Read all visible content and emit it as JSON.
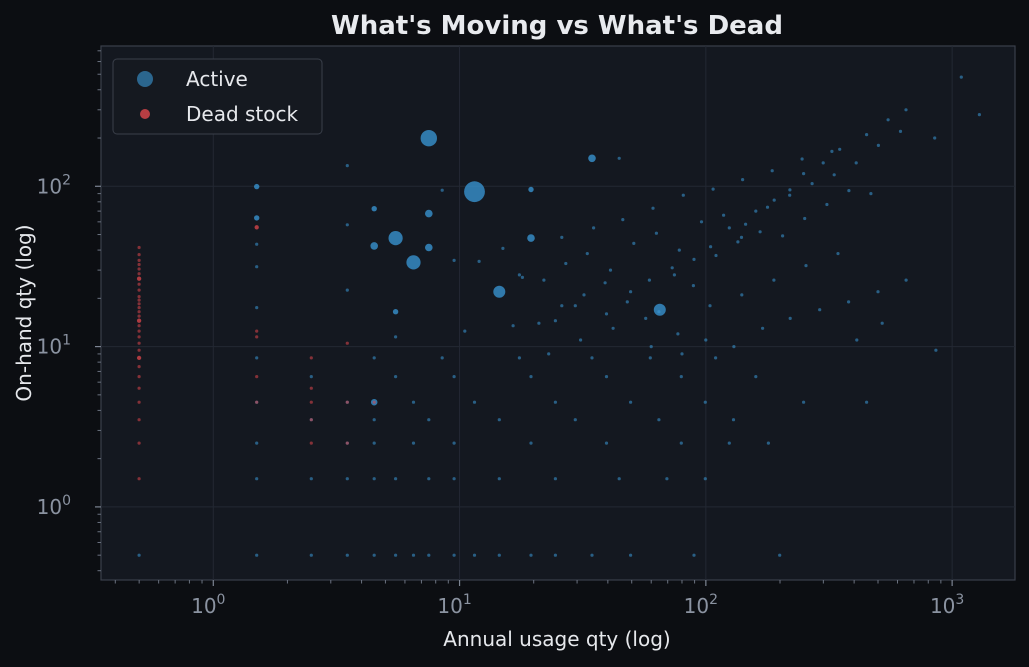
{
  "chart_data": {
    "type": "scatter",
    "title": "What's Moving vs What's Dead",
    "xlabel": "Annual usage qty (log)",
    "ylabel": "On-hand qty (log)",
    "xscale": "log",
    "yscale": "log",
    "xlim": [
      0.35,
      1800
    ],
    "ylim": [
      0.35,
      750
    ],
    "x_ticks": [
      {
        "base": "10",
        "exp": "0",
        "value": 1
      },
      {
        "base": "10",
        "exp": "1",
        "value": 10
      },
      {
        "base": "10",
        "exp": "2",
        "value": 100
      },
      {
        "base": "10",
        "exp": "3",
        "value": 1000
      }
    ],
    "y_ticks": [
      {
        "base": "10",
        "exp": "0",
        "value": 1
      },
      {
        "base": "10",
        "exp": "1",
        "value": 10
      },
      {
        "base": "10",
        "exp": "2",
        "value": 100
      }
    ],
    "grid": true,
    "legend_position": "top-left",
    "series": [
      {
        "name": "Active",
        "color": "#3a9ad9",
        "points": [
          [
            0.5,
            0.5
          ],
          [
            1.5,
            0.5
          ],
          [
            2.5,
            0.5
          ],
          [
            3.5,
            0.5
          ],
          [
            4.5,
            0.5
          ],
          [
            5.5,
            0.5
          ],
          [
            6.5,
            0.5
          ],
          [
            7.5,
            0.5
          ],
          [
            9.5,
            0.5
          ],
          [
            11.5,
            0.5
          ],
          [
            14.5,
            0.5
          ],
          [
            19.5,
            0.5
          ],
          [
            24.5,
            0.5
          ],
          [
            34.5,
            0.5
          ],
          [
            49.5,
            0.5
          ],
          [
            89.5,
            0.5
          ],
          [
            199.5,
            0.5
          ],
          [
            1.5,
            1.5
          ],
          [
            2.5,
            1.5
          ],
          [
            3.5,
            1.5
          ],
          [
            4.5,
            1.5
          ],
          [
            5.5,
            1.5
          ],
          [
            7.5,
            1.5
          ],
          [
            9.5,
            1.5
          ],
          [
            14.5,
            1.5
          ],
          [
            24.5,
            1.5
          ],
          [
            44.5,
            1.5
          ],
          [
            69.5,
            1.5
          ],
          [
            99.5,
            1.5
          ],
          [
            1.5,
            2.5
          ],
          [
            3.5,
            2.5
          ],
          [
            4.5,
            2.5
          ],
          [
            6.5,
            2.5
          ],
          [
            9.5,
            2.5
          ],
          [
            19.5,
            2.5
          ],
          [
            39.5,
            2.5
          ],
          [
            79.5,
            2.5
          ],
          [
            124.5,
            2.5
          ],
          [
            179.5,
            2.5
          ],
          [
            2.5,
            3.5
          ],
          [
            4.5,
            3.5
          ],
          [
            7.5,
            3.5
          ],
          [
            14.5,
            3.5
          ],
          [
            29.5,
            3.5
          ],
          [
            64.5,
            3.5
          ],
          [
            129.5,
            3.5
          ],
          [
            1.5,
            4.5
          ],
          [
            3.5,
            4.5
          ],
          [
            4.5,
            4.5
          ],
          [
            6.5,
            4.5
          ],
          [
            11.5,
            4.5
          ],
          [
            24.5,
            4.5
          ],
          [
            49.5,
            4.5
          ],
          [
            99.5,
            4.5
          ],
          [
            249.5,
            4.5
          ],
          [
            449.5,
            4.5
          ],
          [
            2.5,
            6.5
          ],
          [
            5.5,
            6.5
          ],
          [
            9.5,
            6.5
          ],
          [
            19.5,
            6.5
          ],
          [
            39.5,
            6.5
          ],
          [
            79.5,
            6.5
          ],
          [
            159.5,
            6.5
          ],
          [
            1.5,
            8.5
          ],
          [
            4.5,
            8.5
          ],
          [
            8.5,
            8.5
          ],
          [
            17.5,
            8.5
          ],
          [
            34.5,
            8.5
          ],
          [
            59.5,
            8.5
          ],
          [
            109.5,
            8.5
          ],
          [
            859.5,
            9.5
          ],
          [
            5.5,
            11.5
          ],
          [
            10.5,
            12.5
          ],
          [
            16.5,
            13.5
          ],
          [
            24.5,
            14.5
          ],
          [
            29.5,
            18
          ],
          [
            39.5,
            16
          ],
          [
            49.5,
            22
          ],
          [
            65,
            17
          ],
          [
            74.5,
            28
          ],
          [
            89.5,
            35
          ],
          [
            104.5,
            42
          ],
          [
            124.5,
            55
          ],
          [
            139.5,
            48
          ],
          [
            159.5,
            70
          ],
          [
            189.5,
            82
          ],
          [
            219.5,
            95
          ],
          [
            249.5,
            120
          ],
          [
            299.5,
            140
          ],
          [
            349.5,
            170
          ],
          [
            449.5,
            210
          ],
          [
            549.5,
            260
          ],
          [
            649.5,
            300
          ],
          [
            849.5,
            200
          ],
          [
            1089.5,
            480
          ],
          [
            1290,
            280
          ],
          [
            1.5,
            17.5
          ],
          [
            1.5,
            31.5
          ],
          [
            1.5,
            43.5
          ],
          [
            1.5,
            63.5
          ],
          [
            1.5,
            99.5
          ],
          [
            3.5,
            22.5
          ],
          [
            3.5,
            57.5
          ],
          [
            3.5,
            134.5
          ],
          [
            4.5,
            42.5
          ],
          [
            4.5,
            72.5
          ],
          [
            5.5,
            16.5
          ],
          [
            5.5,
            47.5
          ],
          [
            6.5,
            33.5
          ],
          [
            7.5,
            41.5
          ],
          [
            7.5,
            67.5
          ],
          [
            7.5,
            199.5
          ],
          [
            8.5,
            94.5
          ],
          [
            9.5,
            34.5
          ],
          [
            11.5,
            92.5
          ],
          [
            19.5,
            95.5
          ],
          [
            19.5,
            47.5
          ],
          [
            34.5,
            149.5
          ],
          [
            44.5,
            149.5
          ],
          [
            64.5,
            16.5
          ],
          [
            14.5,
            22
          ],
          [
            17.5,
            28
          ],
          [
            22,
            26
          ],
          [
            27,
            33
          ],
          [
            33,
            38
          ],
          [
            41,
            30
          ],
          [
            51,
            44
          ],
          [
            63,
            51
          ],
          [
            78,
            40
          ],
          [
            96,
            60
          ],
          [
            118,
            66
          ],
          [
            145,
            58
          ],
          [
            178,
            74
          ],
          [
            219,
            88
          ],
          [
            270,
            104
          ],
          [
            332,
            118
          ],
          [
            408,
            140
          ],
          [
            502,
            180
          ],
          [
            617,
            220
          ],
          [
            21,
            14
          ],
          [
            26,
            18
          ],
          [
            32,
            21
          ],
          [
            39,
            25
          ],
          [
            48,
            19
          ],
          [
            59,
            26
          ],
          [
            73,
            31
          ],
          [
            89,
            24
          ],
          [
            110,
            37
          ],
          [
            135,
            45
          ],
          [
            166,
            52
          ],
          [
            205,
            49
          ],
          [
            252,
            63
          ],
          [
            310,
            77
          ],
          [
            381,
            94
          ],
          [
            468,
            90
          ],
          [
            23,
            9
          ],
          [
            31,
            11
          ],
          [
            42,
            13
          ],
          [
            57,
            15
          ],
          [
            77,
            12
          ],
          [
            104,
            18
          ],
          [
            140,
            21
          ],
          [
            189,
            26
          ],
          [
            255,
            32
          ],
          [
            344,
            38
          ],
          [
            12,
            34
          ],
          [
            15,
            41
          ],
          [
            18,
            27
          ],
          [
            26,
            48
          ],
          [
            35,
            55
          ],
          [
            46,
            62
          ],
          [
            61,
            73
          ],
          [
            81,
            88
          ],
          [
            107,
            96
          ],
          [
            141,
            110
          ],
          [
            186,
            125
          ],
          [
            246,
            148
          ],
          [
            325,
            165
          ],
          [
            60,
            10
          ],
          [
            80,
            9
          ],
          [
            100,
            11
          ],
          [
            130,
            10
          ],
          [
            170,
            13
          ],
          [
            220,
            15
          ],
          [
            290,
            17
          ],
          [
            380,
            19
          ],
          [
            500,
            22
          ],
          [
            650,
            26
          ],
          [
            410,
            11
          ],
          [
            520,
            14
          ]
        ],
        "sizes": [
          1,
          1,
          1,
          1,
          1,
          1,
          1,
          1,
          1,
          1,
          1,
          1,
          1,
          1,
          1,
          1,
          1,
          1,
          1,
          1,
          1,
          1,
          1,
          1,
          1,
          1,
          1,
          1,
          1,
          1,
          1,
          1,
          1,
          1,
          1,
          1,
          1,
          1,
          1,
          1,
          1,
          1,
          1,
          1,
          1,
          1,
          1,
          1,
          2.5,
          1,
          1,
          1,
          1,
          1,
          1,
          1,
          1,
          1,
          1,
          1,
          1,
          1,
          1,
          1,
          1,
          1,
          1,
          1,
          1,
          1,
          1,
          1,
          1,
          1,
          1,
          1,
          1,
          1,
          5,
          1,
          1,
          1,
          1,
          1,
          1,
          1,
          1,
          1,
          1,
          1,
          1,
          1,
          1,
          1,
          1,
          1,
          1,
          1,
          1,
          2,
          2,
          1,
          1,
          1,
          3,
          2,
          2,
          6,
          6,
          3,
          3,
          7,
          1,
          1,
          9,
          2,
          3,
          3,
          1,
          1,
          5,
          1,
          1,
          1,
          1,
          1,
          1,
          1,
          1,
          1,
          1,
          1,
          1,
          1,
          1,
          1,
          1,
          1,
          1,
          1,
          1,
          1,
          1,
          1,
          1,
          1,
          1,
          1,
          1,
          1,
          1,
          1,
          1,
          1,
          1,
          1,
          1,
          1,
          1,
          1,
          1,
          1,
          1,
          1,
          1,
          1,
          1,
          1,
          1,
          1,
          1,
          1,
          1,
          1,
          1,
          1,
          1,
          1,
          1,
          1,
          1,
          1,
          1,
          1,
          1,
          1,
          1,
          1,
          1,
          1,
          1
        ]
      },
      {
        "name": "Dead stock",
        "color": "#e0474c",
        "points": [
          [
            0.5,
            1.5
          ],
          [
            0.5,
            2.5
          ],
          [
            0.5,
            3.5
          ],
          [
            0.5,
            4.5
          ],
          [
            0.5,
            5.5
          ],
          [
            0.5,
            6.5
          ],
          [
            0.5,
            7.5
          ],
          [
            0.5,
            8.5
          ],
          [
            0.5,
            9.5
          ],
          [
            0.5,
            10.5
          ],
          [
            0.5,
            11.5
          ],
          [
            0.5,
            12.5
          ],
          [
            0.5,
            13.5
          ],
          [
            0.5,
            14.5
          ],
          [
            0.5,
            15.5
          ],
          [
            0.5,
            16.5
          ],
          [
            0.5,
            17.5
          ],
          [
            0.5,
            18.5
          ],
          [
            0.5,
            19.5
          ],
          [
            0.5,
            20.5
          ],
          [
            0.5,
            22.5
          ],
          [
            0.5,
            24.5
          ],
          [
            0.5,
            26.5
          ],
          [
            0.5,
            28.5
          ],
          [
            0.5,
            30.5
          ],
          [
            0.5,
            32.5
          ],
          [
            0.5,
            34.5
          ],
          [
            0.5,
            37.5
          ],
          [
            0.5,
            41.5
          ],
          [
            1.5,
            4.5
          ],
          [
            1.5,
            6.5
          ],
          [
            1.5,
            11.5
          ],
          [
            1.5,
            12.5
          ],
          [
            1.5,
            55.5
          ],
          [
            2.5,
            2.5
          ],
          [
            2.5,
            3.5
          ],
          [
            2.5,
            4.5
          ],
          [
            2.5,
            5.5
          ],
          [
            2.5,
            8.5
          ],
          [
            3.5,
            2.5
          ],
          [
            3.5,
            4.5
          ],
          [
            3.5,
            10.5
          ],
          [
            4.5,
            4.5
          ]
        ],
        "sizes": [
          1,
          1,
          1,
          1,
          1,
          1,
          1,
          1.5,
          1,
          1,
          1,
          1,
          1,
          1.5,
          1,
          1,
          1,
          1,
          1,
          1,
          1,
          1,
          1.5,
          1,
          1,
          1,
          1,
          1,
          1,
          1,
          1,
          1,
          1,
          1.5,
          1,
          1,
          1,
          1,
          1,
          1,
          1,
          1,
          1
        ]
      }
    ]
  }
}
